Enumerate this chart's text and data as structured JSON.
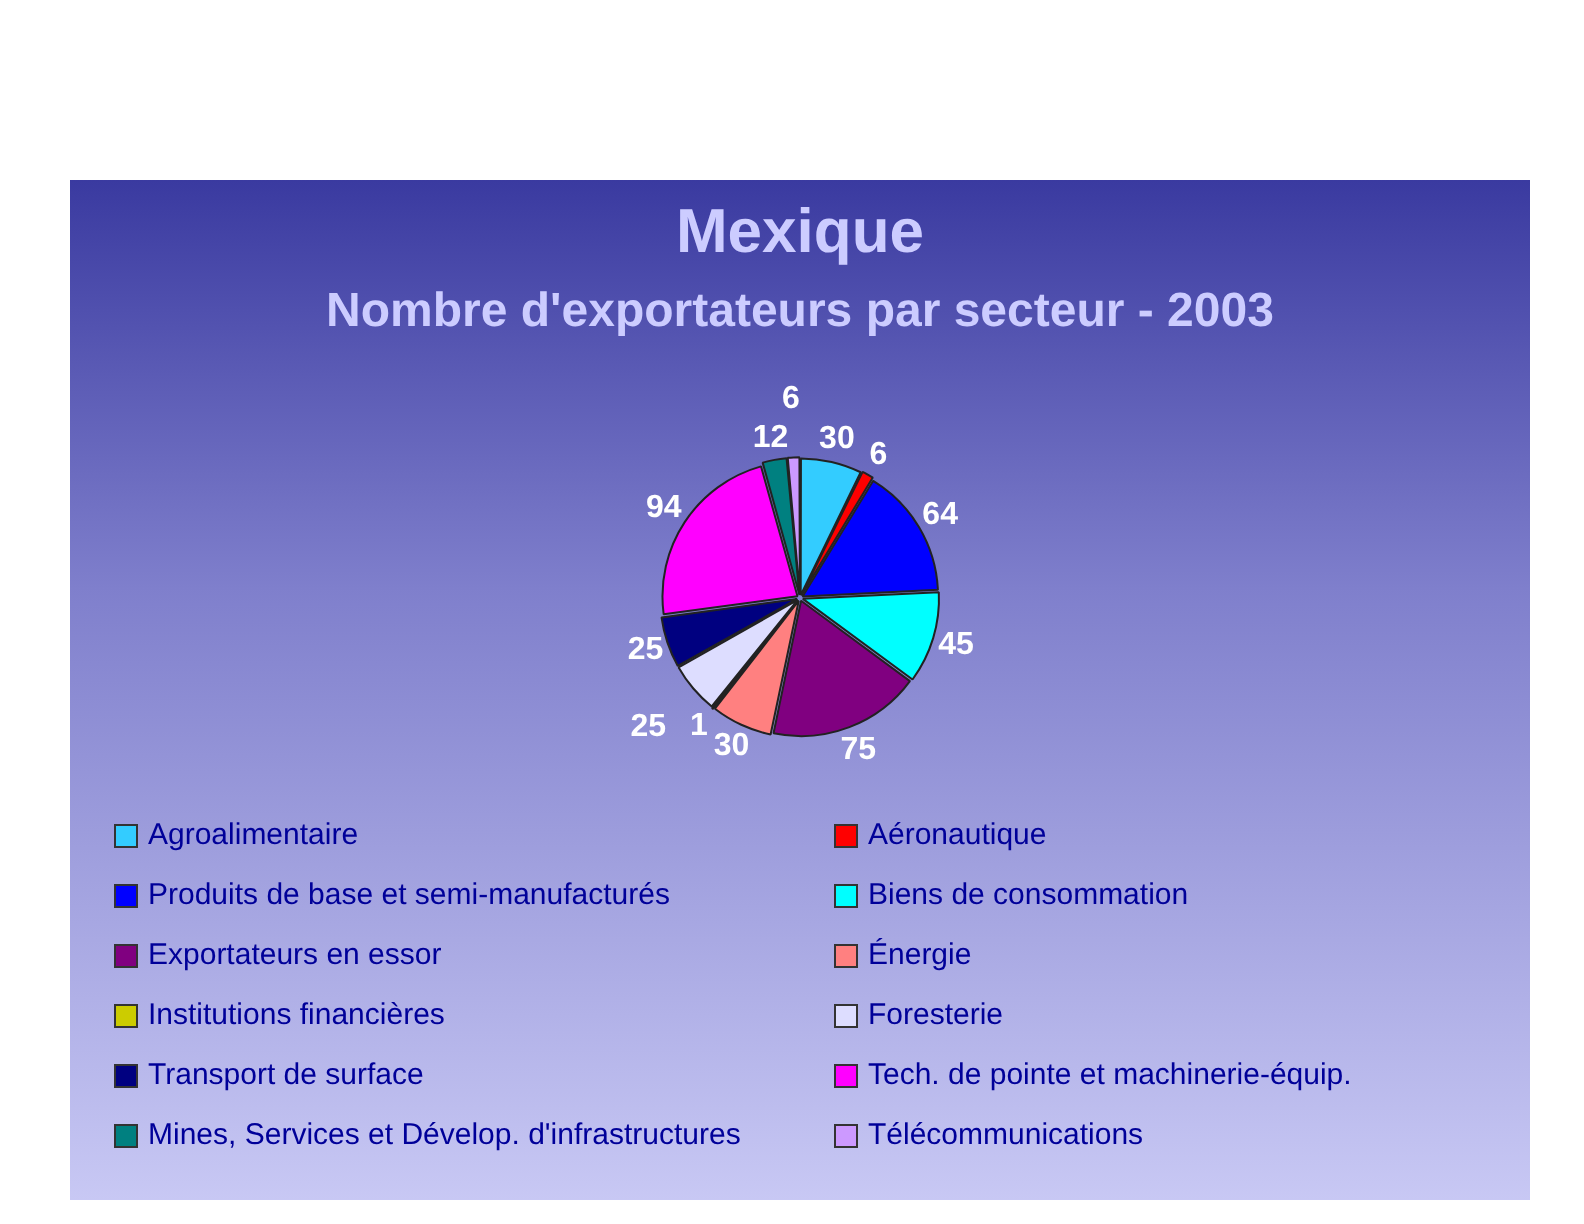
{
  "chart_data": {
    "type": "pie",
    "title": "Mexique",
    "subtitle": "Nombre d'exportateurs par secteur - 2003",
    "categories": [
      "Agroalimentaire",
      "Aéronautique",
      "Produits de base et semi-manufacturés",
      "Biens de consommation",
      "Exportateurs en essor",
      "Énergie",
      "Institutions financières",
      "Foresterie",
      "Transport de surface",
      "Tech. de pointe et machinerie-équip.",
      "Mines, Services et Dévelop. d'infrastructures",
      "Télécommunications"
    ],
    "values": [
      30,
      6,
      64,
      45,
      75,
      30,
      1,
      25,
      25,
      94,
      12,
      6
    ],
    "colors": [
      "#33ccff",
      "#ff0000",
      "#0000ff",
      "#00ffff",
      "#800080",
      "#ff8080",
      "#cccc00",
      "#ddddff",
      "#000080",
      "#ff00ff",
      "#008080",
      "#cc99ff"
    ],
    "data_labels": true,
    "legend": "bottom"
  }
}
